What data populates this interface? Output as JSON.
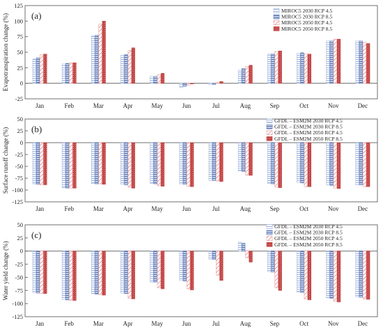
{
  "patterns": {
    "light_blue": "#9fb4dc",
    "dark_blue": "#5a75b0",
    "light_red": "#e8a1a1",
    "dark_red": "#c24747",
    "frame": "#6f6f6f"
  },
  "chart_data": [
    {
      "type": "bar",
      "panel_label": "(a)",
      "ylabel": "Evapotranspiration change (%)",
      "ylim": [
        -25,
        125
      ],
      "yticks": [
        -25,
        0,
        25,
        50,
        75,
        100,
        125
      ],
      "categories": [
        "Jan",
        "Feb",
        "Mar",
        "Apr",
        "May",
        "Jun",
        "Jul",
        "Aug",
        "Sep",
        "Oct",
        "Nov",
        "Dec"
      ],
      "legend_position": "top-right",
      "series": [
        {
          "name": "MIROC5 2030 RCP 4.5",
          "values": [
            39,
            31,
            76,
            45,
            11,
            -7,
            -2,
            21,
            47,
            48,
            68,
            68
          ]
        },
        {
          "name": "MIROC5 2030 RCP 8.5",
          "values": [
            41,
            32,
            77,
            46,
            11,
            -5,
            -2,
            24,
            47,
            49,
            68,
            68
          ]
        },
        {
          "name": "MIROC5 2050 RCP 4.5",
          "values": [
            46,
            33,
            95,
            53,
            14,
            -3,
            1,
            27,
            51,
            47,
            71,
            66
          ]
        },
        {
          "name": "MIROC5 2050 RCP 8.5",
          "values": [
            47,
            33,
            100,
            57,
            16,
            -1,
            3,
            29,
            52,
            47,
            71,
            64
          ]
        }
      ]
    },
    {
      "type": "bar",
      "panel_label": "(b)",
      "ylabel": "Surface runoff change (%)",
      "ylim": [
        -125,
        50
      ],
      "yticks": [
        -125,
        -100,
        -75,
        -50,
        -25,
        0,
        25,
        50
      ],
      "categories": [
        "Jan",
        "Feb",
        "Mar",
        "Apr",
        "May",
        "Jun",
        "Jul",
        "Aug",
        "Sep",
        "Oct",
        "Nov",
        "Dec"
      ],
      "legend_position": "top-right",
      "series": [
        {
          "name": "GFDL – ESM2M 2030 RCP 4.5",
          "values": [
            -87,
            -95,
            -86,
            -88,
            -86,
            -87,
            -80,
            -60,
            -86,
            -84,
            -89,
            -89
          ]
        },
        {
          "name": "GFDL – ESM2M 2030 RCP 8.5",
          "values": [
            -88,
            -96,
            -87,
            -89,
            -87,
            -88,
            -80,
            -61,
            -87,
            -85,
            -90,
            -89
          ]
        },
        {
          "name": "GFDL – ESM2M 2050 RCP 4.5",
          "values": [
            -89,
            -96,
            -87,
            -94,
            -91,
            -92,
            -81,
            -69,
            -94,
            -93,
            -96,
            -93
          ]
        },
        {
          "name": "GFDL – ESM2M 2050 RCP 8.5",
          "values": [
            -89,
            -96,
            -88,
            -96,
            -92,
            -93,
            -82,
            -69,
            -95,
            -93,
            -97,
            -93
          ]
        }
      ]
    },
    {
      "type": "bar",
      "panel_label": "(c)",
      "ylabel": "Water yield change (%)",
      "ylim": [
        -125,
        50
      ],
      "yticks": [
        -125,
        -100,
        -75,
        -50,
        -25,
        0,
        25,
        50
      ],
      "categories": [
        "Jan",
        "Feb",
        "Mar",
        "Apr",
        "May",
        "Jun",
        "Jul",
        "Aug",
        "Sep",
        "Oct",
        "Nov",
        "Dec"
      ],
      "legend_position": "top-right",
      "series": [
        {
          "name": "GFDL – ESM2M 2030 RCP 4.5",
          "values": [
            -79,
            -92,
            -81,
            -80,
            -59,
            -56,
            -16,
            17,
            -39,
            -78,
            -89,
            -87
          ]
        },
        {
          "name": "GFDL – ESM2M 2030 RCP 8.5",
          "values": [
            -80,
            -93,
            -82,
            -81,
            -59,
            -57,
            -16,
            15,
            -40,
            -79,
            -90,
            -88
          ]
        },
        {
          "name": "GFDL – ESM2M 2050 RCP 4.5",
          "values": [
            -81,
            -94,
            -83,
            -90,
            -70,
            -72,
            -46,
            -13,
            -70,
            -91,
            -96,
            -91
          ]
        },
        {
          "name": "GFDL – ESM2M 2050 RCP 8.5",
          "values": [
            -81,
            -94,
            -84,
            -91,
            -72,
            -74,
            -56,
            -21,
            -75,
            -93,
            -97,
            -92
          ]
        }
      ]
    }
  ]
}
